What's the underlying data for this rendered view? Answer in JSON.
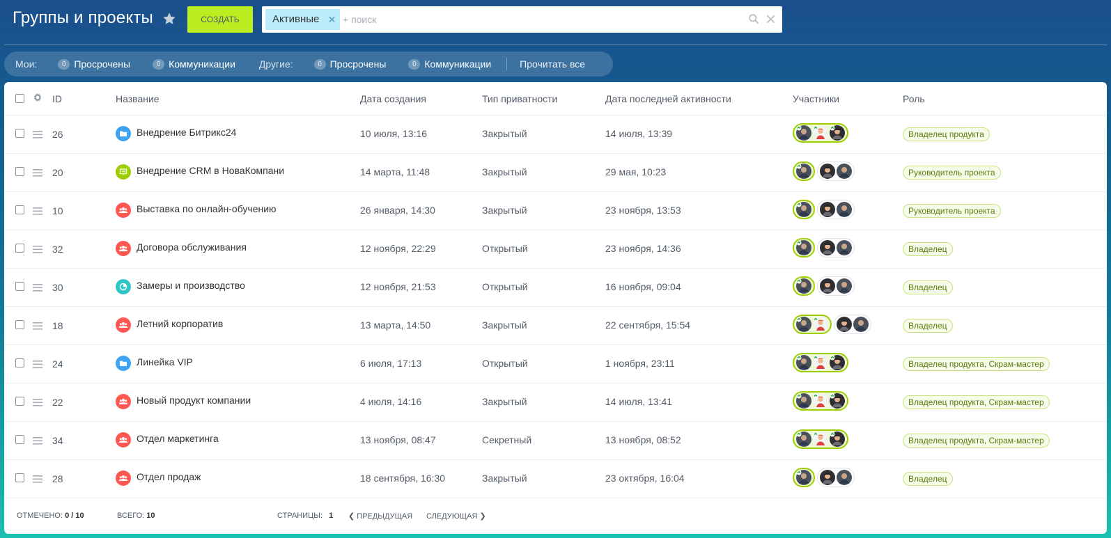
{
  "header": {
    "title": "Группы и проекты",
    "create_label": "Создать",
    "filter_chip": "Активные",
    "search_placeholder": "+ поиск"
  },
  "counters": {
    "mine_label": "Мои:",
    "others_label": "Другие:",
    "mine": [
      {
        "count": "0",
        "label": "Просрочены"
      },
      {
        "count": "0",
        "label": "Коммуникации"
      }
    ],
    "others": [
      {
        "count": "0",
        "label": "Просрочены"
      },
      {
        "count": "0",
        "label": "Коммуникации"
      }
    ],
    "read_all": "Прочитать все"
  },
  "columns": {
    "id": "ID",
    "name": "Название",
    "created": "Дата создания",
    "privacy": "Тип приватности",
    "last_activity": "Дата последней активности",
    "members": "Участники",
    "role": "Роль"
  },
  "rows": [
    {
      "id": "26",
      "name": "Внедрение Битрикс24",
      "icon": "folder-icon",
      "icon_color": "#3fa3f3",
      "created": "10 июля, 13:16",
      "privacy": "Закрытый",
      "last_activity": "14 июля, 13:39",
      "role": "Владелец продукта",
      "owners": 3,
      "others": 0
    },
    {
      "id": "20",
      "name": "Внедрение CRM в НоваКомпани",
      "icon": "presentation-icon",
      "icon_color": "#9dcf00",
      "created": "14 марта, 11:48",
      "privacy": "Закрытый",
      "last_activity": "29 мая, 10:23",
      "role": "Руководитель проекта",
      "owners": 1,
      "others": 2
    },
    {
      "id": "10",
      "name": "Выставка по онлайн-обучению",
      "icon": "people-icon",
      "icon_color": "#ff5752",
      "created": "26 января, 14:30",
      "privacy": "Закрытый",
      "last_activity": "23 ноября, 13:53",
      "role": "Руководитель проекта",
      "owners": 1,
      "others": 2
    },
    {
      "id": "32",
      "name": "Договора обслуживания",
      "icon": "people-icon",
      "icon_color": "#ff5752",
      "created": "12 ноября, 22:29",
      "privacy": "Открытый",
      "last_activity": "23 ноября, 14:36",
      "role": "Владелец",
      "owners": 1,
      "others": 2
    },
    {
      "id": "30",
      "name": "Замеры и производство",
      "icon": "pie-chart-icon",
      "icon_color": "#2fc6c6",
      "created": "12 ноября, 21:53",
      "privacy": "Открытый",
      "last_activity": "16 ноября, 09:04",
      "role": "Владелец",
      "owners": 1,
      "others": 2
    },
    {
      "id": "18",
      "name": "Летний корпоратив",
      "icon": "people-icon",
      "icon_color": "#ff5752",
      "created": "13 марта, 14:50",
      "privacy": "Закрытый",
      "last_activity": "22 сентября, 15:54",
      "role": "Владелец",
      "owners": 2,
      "others": 2
    },
    {
      "id": "24",
      "name": "Линейка VIP",
      "icon": "folder-icon",
      "icon_color": "#3fa3f3",
      "created": "6 июля, 17:13",
      "privacy": "Открытый",
      "last_activity": "1 ноября, 23:11",
      "role": "Владелец продукта, Скрам-мастер",
      "owners": 3,
      "others": 0
    },
    {
      "id": "22",
      "name": "Новый продукт компании",
      "icon": "people-icon",
      "icon_color": "#ff5752",
      "created": "4 июля, 14:16",
      "privacy": "Закрытый",
      "last_activity": "14 июля, 13:41",
      "role": "Владелец продукта, Скрам-мастер",
      "owners": 3,
      "others": 0
    },
    {
      "id": "34",
      "name": "Отдел маркетинга",
      "icon": "people-icon",
      "icon_color": "#ff5752",
      "created": "13 ноября, 08:47",
      "privacy": "Секретный",
      "last_activity": "13 ноября, 08:52",
      "role": "Владелец продукта, Скрам-мастер",
      "owners": 3,
      "others": 0
    },
    {
      "id": "28",
      "name": "Отдел продаж",
      "icon": "people-icon",
      "icon_color": "#ff5752",
      "created": "18 сентября, 16:30",
      "privacy": "Закрытый",
      "last_activity": "23 октября, 16:04",
      "role": "Владелец",
      "owners": 1,
      "others": 2
    }
  ],
  "footer": {
    "selected_label": "Отмечено:",
    "selected_value": "0 / 10",
    "total_label": "Всего:",
    "total_value": "10",
    "pages_label": "Страницы:",
    "page": "1",
    "prev": "Предыдущая",
    "next": "Следующая"
  },
  "colors": {
    "accent_green": "#bbed21",
    "owner_ring": "#9dcf00",
    "role_text": "#5b7d0c"
  }
}
